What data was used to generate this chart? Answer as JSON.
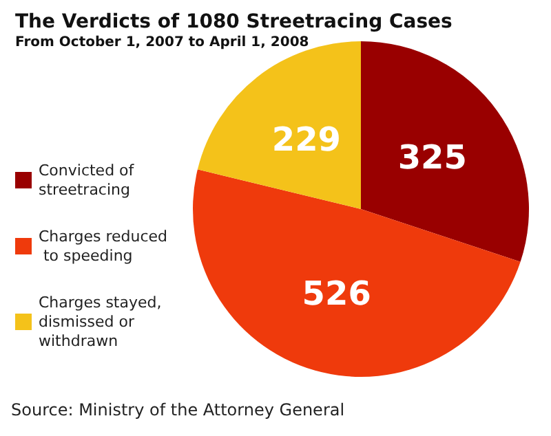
{
  "chart_data": {
    "type": "pie",
    "title": "The Verdicts of 1080 Streetracing Cases",
    "subtitle": "From October 1, 2007 to April 1, 2008",
    "categories": [
      "Convicted of streetracing",
      "Charges reduced to speeding",
      "Charges stayed, dismissed or withdrawn"
    ],
    "values": [
      325,
      526,
      229
    ],
    "colors": [
      "#990000",
      "#ef3a0c",
      "#f4c21a"
    ],
    "data_labels": true,
    "legend": "left",
    "annotations": [
      "Source: Ministry of the Attorney General"
    ]
  }
}
